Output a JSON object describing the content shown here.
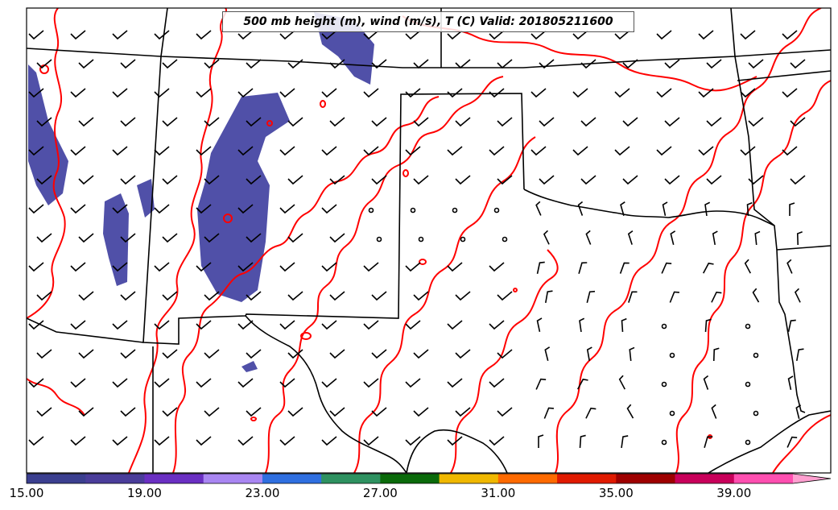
{
  "title": "500 mb height (m), wind (m/s), T (C) Valid: 201805211600",
  "colorbar": {
    "tick_labels": [
      "15.00",
      "19.00",
      "23.00",
      "27.00",
      "31.00",
      "35.00",
      "39.00"
    ],
    "tick_values": [
      15,
      19,
      23,
      27,
      31,
      35,
      39
    ],
    "min": 15,
    "max": 43,
    "bin_width": 2,
    "colors": [
      "#3b3f8f",
      "#4a3d9a",
      "#6a2fc2",
      "#a986f2",
      "#2f6fe0",
      "#2e9160",
      "#0a6a0a",
      "#f0b800",
      "#ff6a00",
      "#e01a00",
      "#9e0000",
      "#c8005a",
      "#ff4fb0",
      "#ff9fd0"
    ]
  },
  "styles": {
    "contour_color": "#ff0000",
    "border_color": "#000000",
    "barb_color": "#000000",
    "wind_fill_color": "#5050a8"
  }
}
